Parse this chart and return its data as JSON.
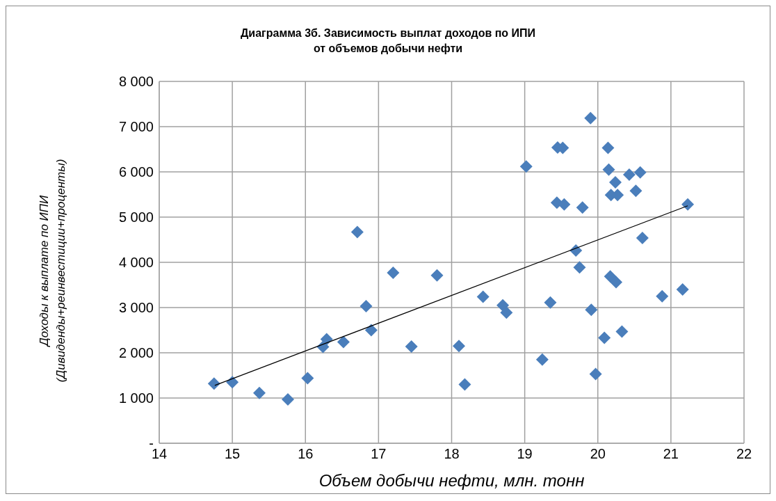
{
  "chart_data": {
    "type": "scatter",
    "title": "Диаграмма 3б. Зависимость выплат доходов по ИПИ\nот объемов добычи нефти",
    "xlabel": "Объем добычи нефти, млн. тонн",
    "ylabel": "Доходы к выплате по ИПИ\n(Дивиденды+реинвестиции+проценты)",
    "xlim": [
      14,
      22
    ],
    "xticks": [
      14,
      15,
      16,
      17,
      18,
      19,
      20,
      21,
      22
    ],
    "ylim": [
      0,
      8000
    ],
    "yticks": [
      {
        "value": 0,
        "label": "-"
      },
      {
        "value": 1000,
        "label": "1 000"
      },
      {
        "value": 2000,
        "label": "2 000"
      },
      {
        "value": 3000,
        "label": "3 000"
      },
      {
        "value": 4000,
        "label": "4 000"
      },
      {
        "value": 5000,
        "label": "5 000"
      },
      {
        "value": 6000,
        "label": "6 000"
      },
      {
        "value": 7000,
        "label": "7 000"
      },
      {
        "value": 8000,
        "label": "8 000"
      }
    ],
    "grid": true,
    "marker": "diamond",
    "series": [
      {
        "type": "scatter",
        "color": "#4a7ebb",
        "x": [
          14.75,
          15.0,
          15.37,
          15.76,
          16.03,
          16.24,
          16.29,
          16.52,
          16.71,
          16.83,
          16.9,
          17.2,
          17.45,
          17.8,
          18.1,
          18.18,
          18.43,
          18.7,
          18.75,
          19.02,
          19.24,
          19.35,
          19.45,
          19.52,
          19.44,
          19.54,
          19.79,
          19.7,
          19.75,
          19.9,
          19.91,
          19.97,
          20.09,
          20.14,
          20.15,
          20.17,
          20.25,
          20.18,
          20.27,
          20.24,
          20.33,
          20.43,
          20.58,
          20.52,
          20.61,
          20.88,
          21.16,
          21.23
        ],
        "values": [
          1320,
          1350,
          1110,
          970,
          1440,
          2130,
          2300,
          2240,
          4670,
          3030,
          2500,
          3770,
          2140,
          3710,
          2150,
          1300,
          3240,
          3050,
          2890,
          6120,
          1850,
          3110,
          6540,
          6530,
          5320,
          5280,
          5210,
          4260,
          3890,
          7190,
          2950,
          1530,
          2330,
          6530,
          6050,
          3690,
          3560,
          5490,
          5490,
          5770,
          2470,
          5940,
          5990,
          5580,
          4540,
          3250,
          3400,
          5280
        ]
      },
      {
        "type": "line",
        "color": "#000000",
        "line_style": "solid",
        "marker": "none",
        "x": [
          14.76,
          21.23
        ],
        "values": [
          1280,
          5250
        ]
      }
    ]
  }
}
